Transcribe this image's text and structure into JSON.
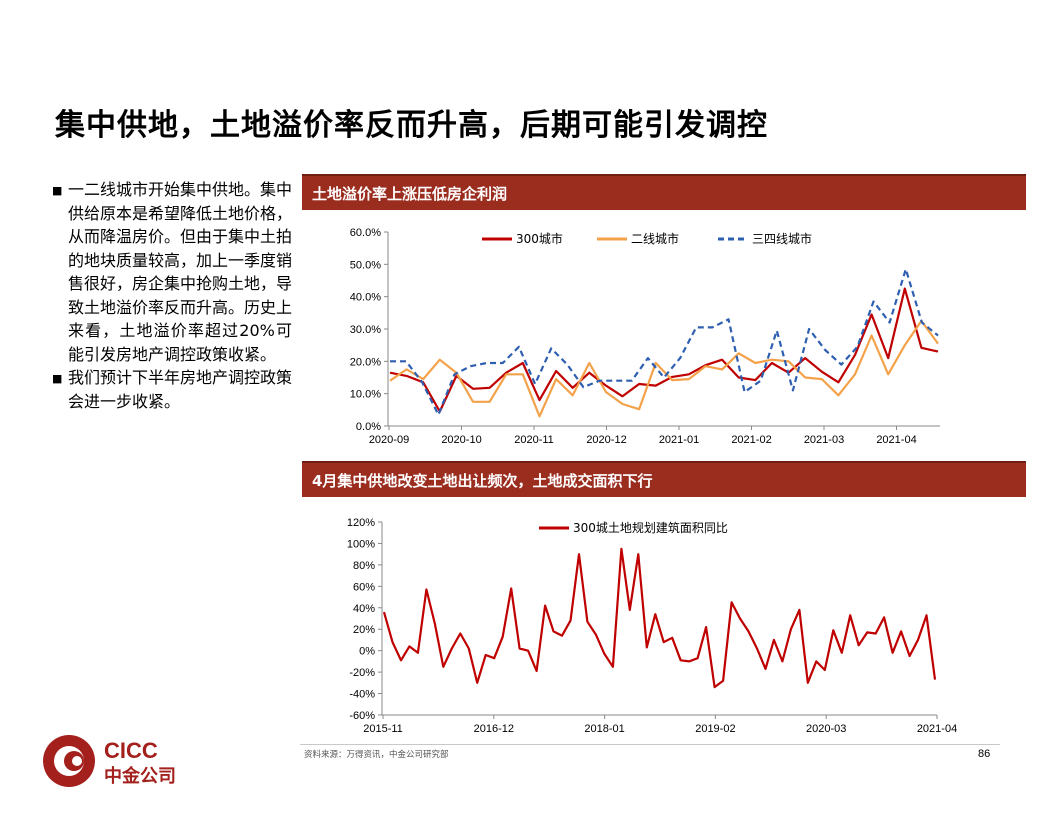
{
  "page": {
    "title": "集中供地，土地溢价率反而升高，后期可能引发调控",
    "bullets": [
      "一二线城市开始集中供地。集中供给原本是希望降低土地价格，从而降温房价。但由于集中土拍的地块质量较高，加上一季度销售很好，房企集中抢购土地，导致土地溢价率反而升高。历史上来看，土地溢价率超过20%可能引发房地产调控政策收紧。",
      "我们预计下半年房地产调控政策会进一步收紧。"
    ],
    "source": "资料来源：万得资讯，中金公司研究部",
    "page_number": "86",
    "logo_text": "CICC",
    "logo_cn": "中金公司"
  },
  "chart_data": [
    {
      "type": "line",
      "panel_title": "土地溢价率上涨压低房企利润",
      "ylim": [
        0,
        60
      ],
      "yticks": [
        "0.0%",
        "10.0%",
        "20.0%",
        "30.0%",
        "40.0%",
        "50.0%",
        "60.0%"
      ],
      "xtick_labels": [
        "2020-09",
        "2020-10",
        "2020-11",
        "2020-12",
        "2021-01",
        "2021-02",
        "2021-03",
        "2021-04"
      ],
      "series": [
        {
          "name": "300城市",
          "color": "#c00000",
          "dash": "none",
          "values": [
            16.5,
            15.5,
            13.5,
            4.5,
            15.5,
            11.5,
            11.8,
            16.5,
            19.5,
            8,
            17,
            11.8,
            16.5,
            12.5,
            9.2,
            13,
            12.5,
            15.2,
            16,
            18.8,
            20.5,
            15,
            14.2,
            19.5,
            16.5,
            21,
            16.8,
            13.5,
            22,
            34.5,
            21,
            42.5,
            24.2,
            23
          ]
        },
        {
          "name": "二线城市",
          "color": "#f4a24a",
          "dash": "none",
          "values": [
            14,
            17.5,
            14.5,
            20.5,
            16.5,
            7.5,
            7.5,
            16,
            16,
            3,
            14.5,
            9.5,
            19.5,
            10.5,
            6.8,
            5.2,
            19.5,
            14.2,
            14.5,
            18.5,
            17.5,
            22.5,
            19.5,
            20.5,
            20,
            15,
            14.5,
            9.5,
            16,
            28,
            16,
            25,
            32.5,
            25.5
          ]
        },
        {
          "name": "三四线城市",
          "color": "#2e5fb0",
          "dash": "6,4",
          "values": [
            20,
            20,
            13.5,
            3.5,
            16,
            18.5,
            19.5,
            19.5,
            24.5,
            13,
            24,
            19,
            12,
            14,
            14,
            14,
            21,
            15,
            21,
            30.5,
            30.5,
            33,
            10.5,
            14,
            29.5,
            11,
            30,
            23.5,
            19,
            24.5,
            38.5,
            32,
            48.5,
            32,
            28
          ]
        }
      ]
    },
    {
      "type": "line",
      "panel_title": "4月集中供地改变土地出让频次，土地成交面积下行",
      "ylim": [
        -60,
        120
      ],
      "yticks": [
        "-60%",
        "-40%",
        "-20%",
        "0%",
        "20%",
        "40%",
        "60%",
        "80%",
        "100%",
        "120%"
      ],
      "xtick_labels": [
        "2015-11",
        "2016-12",
        "2018-01",
        "2019-02",
        "2020-03",
        "2021-04"
      ],
      "series": [
        {
          "name": "300城土地规划建筑面积同比",
          "color": "#c00000",
          "dash": "none",
          "values": [
            36,
            8,
            -9,
            4,
            -2,
            57,
            25,
            -15,
            2,
            16,
            2,
            -30,
            -4,
            -7,
            13,
            58,
            2,
            0,
            -19,
            42,
            18,
            14,
            28,
            90,
            27,
            15,
            -3,
            -15,
            95,
            38,
            90,
            3,
            34,
            8,
            12,
            -9,
            -10,
            -7,
            22,
            -34,
            -28,
            45,
            30,
            18,
            2,
            -17,
            10,
            -10,
            20,
            38,
            -30,
            -10,
            -18,
            19,
            -2,
            33,
            5,
            17,
            16,
            31,
            -2,
            18,
            -5,
            10,
            33,
            -27
          ]
        }
      ]
    }
  ]
}
